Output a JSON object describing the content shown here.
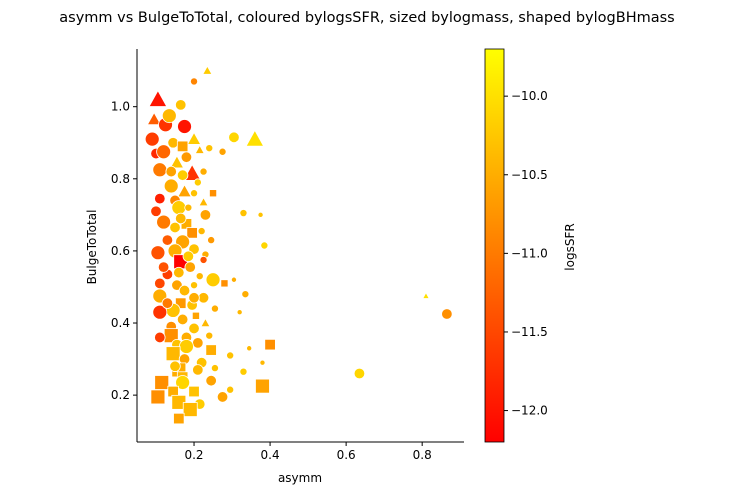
{
  "chart_data": {
    "type": "scatter",
    "title": "asymm vs BulgeToTotal, coloured bylogsSFR, sized bylogmass, shaped bylogBHmass",
    "xlabel": "asymm",
    "ylabel": "BulgeToTotal",
    "xlim": [
      0.05,
      0.91
    ],
    "ylim": [
      0.07,
      1.16
    ],
    "xticks": [
      0.2,
      0.4,
      0.6,
      0.8
    ],
    "xtick_labels": [
      "0.2",
      "0.4",
      "0.6",
      "0.8"
    ],
    "yticks": [
      0.2,
      0.4,
      0.6,
      0.8,
      1.0
    ],
    "ytick_labels": [
      "0.2",
      "0.4",
      "0.6",
      "0.8",
      "1.0"
    ],
    "grid": false,
    "legend": "none",
    "colorbar": {
      "label": "logsSFR",
      "range": [
        -12.2,
        -9.7
      ],
      "ticks": [
        -10.0,
        -10.5,
        -11.0,
        -11.5,
        -12.0
      ],
      "tick_labels": [
        "−10.0",
        "−10.5",
        "−11.0",
        "−11.5",
        "−12.0"
      ],
      "colormap": "autumn",
      "low_color": "#ff0000",
      "high_color": "#ffff00"
    },
    "marker_shapes": [
      "circle",
      "square",
      "triangle"
    ],
    "points": [
      {
        "x": 0.105,
        "y": 1.02,
        "c": -12.0,
        "s": 3,
        "m": "triangle"
      },
      {
        "x": 0.235,
        "y": 1.1,
        "c": -10.2,
        "s": 1,
        "m": "triangle"
      },
      {
        "x": 0.2,
        "y": 1.07,
        "c": -10.9,
        "s": 1,
        "m": "circle"
      },
      {
        "x": 0.165,
        "y": 1.005,
        "c": -10.3,
        "s": 2,
        "m": "circle"
      },
      {
        "x": 0.095,
        "y": 0.965,
        "c": -11.3,
        "s": 2,
        "m": "triangle"
      },
      {
        "x": 0.125,
        "y": 0.95,
        "c": -11.7,
        "s": 3,
        "m": "circle"
      },
      {
        "x": 0.175,
        "y": 0.945,
        "c": -12.0,
        "s": 3,
        "m": "circle"
      },
      {
        "x": 0.135,
        "y": 0.975,
        "c": -10.4,
        "s": 3,
        "m": "circle"
      },
      {
        "x": 0.09,
        "y": 0.91,
        "c": -11.6,
        "s": 3,
        "m": "circle"
      },
      {
        "x": 0.2,
        "y": 0.91,
        "c": -10.2,
        "s": 2,
        "m": "triangle"
      },
      {
        "x": 0.305,
        "y": 0.915,
        "c": -10.1,
        "s": 2,
        "m": "circle"
      },
      {
        "x": 0.36,
        "y": 0.91,
        "c": -10.0,
        "s": 3,
        "m": "triangle"
      },
      {
        "x": 0.145,
        "y": 0.9,
        "c": -10.4,
        "s": 2,
        "m": "circle"
      },
      {
        "x": 0.17,
        "y": 0.89,
        "c": -10.6,
        "s": 2,
        "m": "square"
      },
      {
        "x": 0.24,
        "y": 0.885,
        "c": -10.3,
        "s": 1,
        "m": "circle"
      },
      {
        "x": 0.275,
        "y": 0.875,
        "c": -10.6,
        "s": 1,
        "m": "circle"
      },
      {
        "x": 0.1,
        "y": 0.87,
        "c": -11.8,
        "s": 2,
        "m": "circle"
      },
      {
        "x": 0.12,
        "y": 0.875,
        "c": -11.2,
        "s": 3,
        "m": "circle"
      },
      {
        "x": 0.215,
        "y": 0.88,
        "c": -10.4,
        "s": 1,
        "m": "triangle"
      },
      {
        "x": 0.18,
        "y": 0.86,
        "c": -10.7,
        "s": 2,
        "m": "circle"
      },
      {
        "x": 0.155,
        "y": 0.845,
        "c": -10.3,
        "s": 2,
        "m": "triangle"
      },
      {
        "x": 0.11,
        "y": 0.825,
        "c": -11.0,
        "s": 3,
        "m": "circle"
      },
      {
        "x": 0.195,
        "y": 0.815,
        "c": -11.7,
        "s": 3,
        "m": "triangle"
      },
      {
        "x": 0.17,
        "y": 0.81,
        "c": -10.2,
        "s": 2,
        "m": "circle"
      },
      {
        "x": 0.225,
        "y": 0.82,
        "c": -10.5,
        "s": 1,
        "m": "circle"
      },
      {
        "x": 0.14,
        "y": 0.78,
        "c": -10.5,
        "s": 3,
        "m": "circle"
      },
      {
        "x": 0.21,
        "y": 0.79,
        "c": -10.2,
        "s": 1,
        "m": "circle"
      },
      {
        "x": 0.175,
        "y": 0.765,
        "c": -10.6,
        "s": 2,
        "m": "triangle"
      },
      {
        "x": 0.25,
        "y": 0.76,
        "c": -10.8,
        "s": 1,
        "m": "square"
      },
      {
        "x": 0.11,
        "y": 0.745,
        "c": -11.9,
        "s": 2,
        "m": "circle"
      },
      {
        "x": 0.15,
        "y": 0.74,
        "c": -10.9,
        "s": 2,
        "m": "circle"
      },
      {
        "x": 0.225,
        "y": 0.735,
        "c": -10.4,
        "s": 1,
        "m": "triangle"
      },
      {
        "x": 0.16,
        "y": 0.72,
        "c": -10.2,
        "s": 3,
        "m": "circle"
      },
      {
        "x": 0.1,
        "y": 0.71,
        "c": -11.6,
        "s": 2,
        "m": "circle"
      },
      {
        "x": 0.23,
        "y": 0.7,
        "c": -10.6,
        "s": 2,
        "m": "circle"
      },
      {
        "x": 0.33,
        "y": 0.705,
        "c": -10.3,
        "s": 1,
        "m": "circle"
      },
      {
        "x": 0.375,
        "y": 0.7,
        "c": -10.3,
        "s": 0,
        "m": "circle"
      },
      {
        "x": 0.12,
        "y": 0.68,
        "c": -11.0,
        "s": 3,
        "m": "circle"
      },
      {
        "x": 0.18,
        "y": 0.675,
        "c": -10.5,
        "s": 2,
        "m": "square"
      },
      {
        "x": 0.15,
        "y": 0.665,
        "c": -10.3,
        "s": 2,
        "m": "circle"
      },
      {
        "x": 0.195,
        "y": 0.65,
        "c": -10.8,
        "s": 2,
        "m": "square"
      },
      {
        "x": 0.22,
        "y": 0.655,
        "c": -10.4,
        "s": 1,
        "m": "circle"
      },
      {
        "x": 0.13,
        "y": 0.63,
        "c": -11.3,
        "s": 2,
        "m": "circle"
      },
      {
        "x": 0.17,
        "y": 0.625,
        "c": -10.6,
        "s": 3,
        "m": "circle"
      },
      {
        "x": 0.245,
        "y": 0.63,
        "c": -10.7,
        "s": 1,
        "m": "circle"
      },
      {
        "x": 0.385,
        "y": 0.615,
        "c": -10.1,
        "s": 1,
        "m": "circle"
      },
      {
        "x": 0.15,
        "y": 0.6,
        "c": -10.5,
        "s": 3,
        "m": "circle"
      },
      {
        "x": 0.2,
        "y": 0.605,
        "c": -10.3,
        "s": 2,
        "m": "circle"
      },
      {
        "x": 0.105,
        "y": 0.595,
        "c": -11.4,
        "s": 3,
        "m": "circle"
      },
      {
        "x": 0.23,
        "y": 0.59,
        "c": -10.5,
        "s": 1,
        "m": "circle"
      },
      {
        "x": 0.165,
        "y": 0.57,
        "c": -12.2,
        "s": 3,
        "m": "square"
      },
      {
        "x": 0.225,
        "y": 0.575,
        "c": -11.4,
        "s": 1,
        "m": "circle"
      },
      {
        "x": 0.19,
        "y": 0.555,
        "c": -10.6,
        "s": 2,
        "m": "circle"
      },
      {
        "x": 0.13,
        "y": 0.535,
        "c": -11.6,
        "s": 2,
        "m": "circle"
      },
      {
        "x": 0.16,
        "y": 0.54,
        "c": -10.4,
        "s": 2,
        "m": "circle"
      },
      {
        "x": 0.25,
        "y": 0.52,
        "c": -10.2,
        "s": 3,
        "m": "circle"
      },
      {
        "x": 0.305,
        "y": 0.52,
        "c": -10.5,
        "s": 0,
        "m": "circle"
      },
      {
        "x": 0.11,
        "y": 0.51,
        "c": -11.5,
        "s": 2,
        "m": "circle"
      },
      {
        "x": 0.155,
        "y": 0.505,
        "c": -10.6,
        "s": 2,
        "m": "circle"
      },
      {
        "x": 0.2,
        "y": 0.505,
        "c": -10.3,
        "s": 1,
        "m": "circle"
      },
      {
        "x": 0.28,
        "y": 0.51,
        "c": -10.8,
        "s": 1,
        "m": "square"
      },
      {
        "x": 0.175,
        "y": 0.49,
        "c": -10.4,
        "s": 2,
        "m": "circle"
      },
      {
        "x": 0.335,
        "y": 0.48,
        "c": -10.5,
        "s": 1,
        "m": "circle"
      },
      {
        "x": 0.11,
        "y": 0.475,
        "c": -10.5,
        "s": 3,
        "m": "circle"
      },
      {
        "x": 0.225,
        "y": 0.47,
        "c": -10.4,
        "s": 2,
        "m": "circle"
      },
      {
        "x": 0.165,
        "y": 0.455,
        "c": -10.7,
        "s": 2,
        "m": "square"
      },
      {
        "x": 0.195,
        "y": 0.45,
        "c": -10.3,
        "s": 2,
        "m": "circle"
      },
      {
        "x": 0.145,
        "y": 0.435,
        "c": -10.3,
        "s": 3,
        "m": "circle"
      },
      {
        "x": 0.255,
        "y": 0.44,
        "c": -10.5,
        "s": 1,
        "m": "circle"
      },
      {
        "x": 0.32,
        "y": 0.43,
        "c": -10.4,
        "s": 0,
        "m": "circle"
      },
      {
        "x": 0.11,
        "y": 0.43,
        "c": -11.7,
        "s": 3,
        "m": "circle"
      },
      {
        "x": 0.205,
        "y": 0.42,
        "c": -10.6,
        "s": 1,
        "m": "square"
      },
      {
        "x": 0.17,
        "y": 0.41,
        "c": -10.5,
        "s": 2,
        "m": "circle"
      },
      {
        "x": 0.23,
        "y": 0.4,
        "c": -10.4,
        "s": 1,
        "m": "triangle"
      },
      {
        "x": 0.14,
        "y": 0.39,
        "c": -10.8,
        "s": 2,
        "m": "circle"
      },
      {
        "x": 0.2,
        "y": 0.385,
        "c": -10.3,
        "s": 2,
        "m": "circle"
      },
      {
        "x": 0.14,
        "y": 0.365,
        "c": -10.8,
        "s": 3,
        "m": "square"
      },
      {
        "x": 0.11,
        "y": 0.36,
        "c": -11.6,
        "s": 2,
        "m": "circle"
      },
      {
        "x": 0.18,
        "y": 0.36,
        "c": -10.5,
        "s": 2,
        "m": "circle"
      },
      {
        "x": 0.24,
        "y": 0.365,
        "c": -10.4,
        "s": 1,
        "m": "circle"
      },
      {
        "x": 0.155,
        "y": 0.34,
        "c": -10.3,
        "s": 2,
        "m": "circle"
      },
      {
        "x": 0.21,
        "y": 0.345,
        "c": -10.6,
        "s": 2,
        "m": "circle"
      },
      {
        "x": 0.18,
        "y": 0.335,
        "c": -10.2,
        "s": 3,
        "m": "circle"
      },
      {
        "x": 0.4,
        "y": 0.34,
        "c": -10.8,
        "s": 2,
        "m": "square"
      },
      {
        "x": 0.345,
        "y": 0.33,
        "c": -10.4,
        "s": 0,
        "m": "circle"
      },
      {
        "x": 0.245,
        "y": 0.325,
        "c": -10.5,
        "s": 2,
        "m": "square"
      },
      {
        "x": 0.145,
        "y": 0.315,
        "c": -10.4,
        "s": 3,
        "m": "square"
      },
      {
        "x": 0.295,
        "y": 0.31,
        "c": -10.3,
        "s": 1,
        "m": "circle"
      },
      {
        "x": 0.175,
        "y": 0.3,
        "c": -10.6,
        "s": 2,
        "m": "circle"
      },
      {
        "x": 0.22,
        "y": 0.29,
        "c": -10.3,
        "s": 2,
        "m": "circle"
      },
      {
        "x": 0.38,
        "y": 0.29,
        "c": -10.4,
        "s": 0,
        "m": "circle"
      },
      {
        "x": 0.16,
        "y": 0.27,
        "c": -10.5,
        "s": 3,
        "m": "square"
      },
      {
        "x": 0.21,
        "y": 0.27,
        "c": -10.4,
        "s": 2,
        "m": "circle"
      },
      {
        "x": 0.33,
        "y": 0.265,
        "c": -10.2,
        "s": 1,
        "m": "circle"
      },
      {
        "x": 0.255,
        "y": 0.275,
        "c": -10.3,
        "s": 1,
        "m": "circle"
      },
      {
        "x": 0.635,
        "y": 0.26,
        "c": -10.1,
        "s": 2,
        "m": "circle"
      },
      {
        "x": 0.17,
        "y": 0.25,
        "c": -10.4,
        "s": 2,
        "m": "square"
      },
      {
        "x": 0.245,
        "y": 0.24,
        "c": -10.6,
        "s": 2,
        "m": "circle"
      },
      {
        "x": 0.115,
        "y": 0.235,
        "c": -10.8,
        "s": 3,
        "m": "square"
      },
      {
        "x": 0.17,
        "y": 0.235,
        "c": -10.1,
        "s": 3,
        "m": "circle"
      },
      {
        "x": 0.38,
        "y": 0.225,
        "c": -10.6,
        "s": 3,
        "m": "square"
      },
      {
        "x": 0.295,
        "y": 0.215,
        "c": -10.3,
        "s": 1,
        "m": "circle"
      },
      {
        "x": 0.145,
        "y": 0.21,
        "c": -10.5,
        "s": 2,
        "m": "square"
      },
      {
        "x": 0.2,
        "y": 0.21,
        "c": -10.3,
        "s": 2,
        "m": "square"
      },
      {
        "x": 0.105,
        "y": 0.195,
        "c": -10.8,
        "s": 3,
        "m": "square"
      },
      {
        "x": 0.275,
        "y": 0.195,
        "c": -10.6,
        "s": 2,
        "m": "circle"
      },
      {
        "x": 0.16,
        "y": 0.18,
        "c": -10.4,
        "s": 3,
        "m": "square"
      },
      {
        "x": 0.215,
        "y": 0.175,
        "c": -10.2,
        "s": 2,
        "m": "circle"
      },
      {
        "x": 0.19,
        "y": 0.16,
        "c": -10.4,
        "s": 3,
        "m": "square"
      },
      {
        "x": 0.16,
        "y": 0.135,
        "c": -10.6,
        "s": 2,
        "m": "square"
      },
      {
        "x": 0.81,
        "y": 0.475,
        "c": -10.0,
        "s": 0,
        "m": "triangle"
      },
      {
        "x": 0.865,
        "y": 0.425,
        "c": -10.8,
        "s": 2,
        "m": "circle"
      },
      {
        "x": 0.12,
        "y": 0.555,
        "c": -11.4,
        "s": 2,
        "m": "circle"
      },
      {
        "x": 0.185,
        "y": 0.72,
        "c": -10.4,
        "s": 1,
        "m": "circle"
      },
      {
        "x": 0.14,
        "y": 0.82,
        "c": -10.6,
        "s": 2,
        "m": "circle"
      },
      {
        "x": 0.2,
        "y": 0.47,
        "c": -10.5,
        "s": 2,
        "m": "circle"
      },
      {
        "x": 0.13,
        "y": 0.455,
        "c": -11.0,
        "s": 2,
        "m": "circle"
      },
      {
        "x": 0.185,
        "y": 0.585,
        "c": -10.2,
        "s": 2,
        "m": "circle"
      },
      {
        "x": 0.215,
        "y": 0.53,
        "c": -10.4,
        "s": 1,
        "m": "circle"
      },
      {
        "x": 0.15,
        "y": 0.28,
        "c": -10.3,
        "s": 2,
        "m": "circle"
      },
      {
        "x": 0.2,
        "y": 0.76,
        "c": -10.3,
        "s": 1,
        "m": "circle"
      },
      {
        "x": 0.165,
        "y": 0.69,
        "c": -10.4,
        "s": 2,
        "m": "circle"
      }
    ]
  }
}
